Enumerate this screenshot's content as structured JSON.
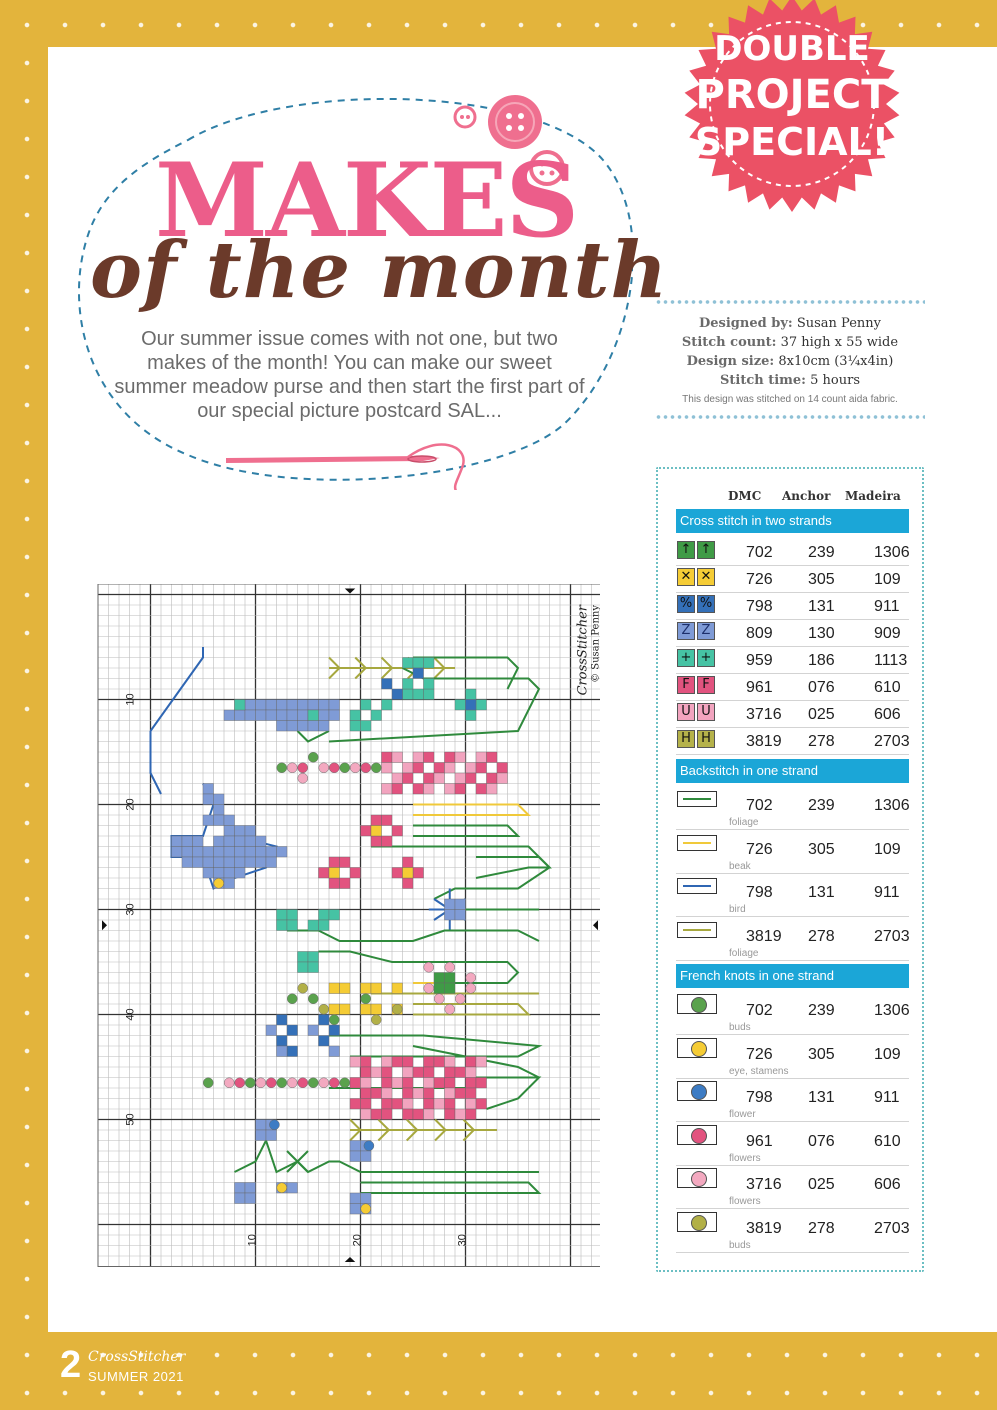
{
  "badge": {
    "line1": "DOUBLE",
    "line2": "PROJECT",
    "line3": "SPECIAL!"
  },
  "title": {
    "makes": "MAKES",
    "of_the_month": "of the month"
  },
  "intro": "Our summer issue comes with not one, but two makes of the month! You can make our sweet summer meadow purse and then start the first part of our special picture postcard SAL...",
  "info": {
    "designed_by_label": "Designed by:",
    "designed_by": "Susan Penny",
    "stitch_count_label": "Stitch count:",
    "stitch_count": "37 high x 55 wide",
    "design_size_label": "Design size:",
    "design_size": "8x10cm (3¼x4in)",
    "stitch_time_label": "Stitch time:",
    "stitch_time": "5 hours",
    "note": "This design was stitched on 14 count aida fabric."
  },
  "key": {
    "col_dmc": "DMC",
    "col_anchor": "Anchor",
    "col_madeira": "Madeira",
    "cross_title": "Cross stitch in two strands",
    "cross": [
      {
        "symbol": "↑",
        "color": "#3f9b46",
        "fg": "#111",
        "dmc": "702",
        "anchor": "239",
        "madeira": "1306"
      },
      {
        "symbol": "✕",
        "color": "#f5cc35",
        "fg": "#111",
        "dmc": "726",
        "anchor": "305",
        "madeira": "109"
      },
      {
        "symbol": "%",
        "color": "#3470b8",
        "fg": "#111",
        "dmc": "798",
        "anchor": "131",
        "madeira": "911"
      },
      {
        "symbol": "Z",
        "color": "#7f9bd6",
        "fg": "#1c2f6b",
        "dmc": "809",
        "anchor": "130",
        "madeira": "909"
      },
      {
        "symbol": "+",
        "color": "#46c3a4",
        "fg": "#111",
        "dmc": "959",
        "anchor": "186",
        "madeira": "1113"
      },
      {
        "symbol": "F",
        "color": "#e2537f",
        "fg": "#111",
        "dmc": "961",
        "anchor": "076",
        "madeira": "610"
      },
      {
        "symbol": "U",
        "color": "#f2a4bf",
        "fg": "#111",
        "dmc": "3716",
        "anchor": "025",
        "madeira": "606"
      },
      {
        "symbol": "H",
        "color": "#b5b24a",
        "fg": "#111",
        "dmc": "3819",
        "anchor": "278",
        "madeira": "2703"
      }
    ],
    "back_title": "Backstitch in one strand",
    "back": [
      {
        "color": "#2f8a3c",
        "dmc": "702",
        "anchor": "239",
        "madeira": "1306",
        "use": "foliage"
      },
      {
        "color": "#f0c93a",
        "dmc": "726",
        "anchor": "305",
        "madeira": "109",
        "use": "beak"
      },
      {
        "color": "#2f66b3",
        "dmc": "798",
        "anchor": "131",
        "madeira": "911",
        "use": "bird"
      },
      {
        "color": "#a7a83f",
        "dmc": "3819",
        "anchor": "278",
        "madeira": "2703",
        "use": "foliage"
      }
    ],
    "french_title": "French knots in one strand",
    "french": [
      {
        "color": "#5aa24d",
        "dmc": "702",
        "anchor": "239",
        "madeira": "1306",
        "use": "buds"
      },
      {
        "color": "#f5cc35",
        "dmc": "726",
        "anchor": "305",
        "madeira": "109",
        "use": "eye, stamens"
      },
      {
        "color": "#3d7cc4",
        "dmc": "798",
        "anchor": "131",
        "madeira": "911",
        "use": "flower"
      },
      {
        "color": "#e2537f",
        "dmc": "961",
        "anchor": "076",
        "madeira": "610",
        "use": "flowers"
      },
      {
        "color": "#f3a9c0",
        "dmc": "3716",
        "anchor": "025",
        "madeira": "606",
        "use": "flowers"
      },
      {
        "color": "#b2b047",
        "dmc": "3819",
        "anchor": "278",
        "madeira": "2703",
        "use": "buds"
      }
    ]
  },
  "chart": {
    "copyright_brand": "CrossStitcher",
    "copyright": "© Susan Penny",
    "row_labels": [
      "50",
      "40",
      "30",
      "20",
      "10"
    ],
    "col_labels": [
      "10",
      "20",
      "30"
    ]
  },
  "footer": {
    "page": "2",
    "brand": "CrossStitcher",
    "issue": "SUMMER 2021"
  }
}
